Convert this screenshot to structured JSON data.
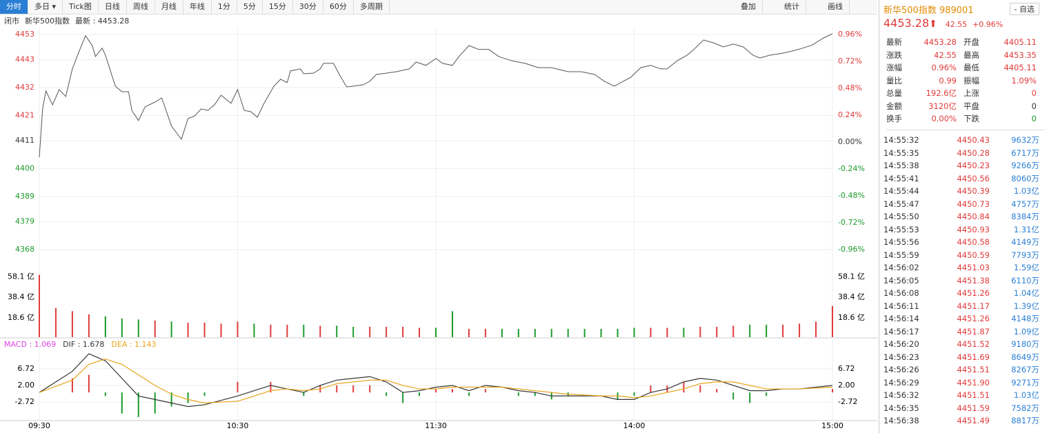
{
  "toolbar": {
    "tabs": [
      "分时",
      "多日 ▾",
      "Tick图",
      "日线",
      "周线",
      "月线",
      "年线",
      "1分",
      "5分",
      "15分",
      "30分",
      "60分",
      "多周期"
    ],
    "tools": [
      "叠加",
      "统计",
      "画线"
    ]
  },
  "info": {
    "status": "闭市",
    "name": "新华500指数",
    "latest": "最新 : 4453.28"
  },
  "chart_data": [
    {
      "type": "line",
      "color": "#555555",
      "grid": true,
      "x": [
        0,
        1,
        2,
        4,
        6,
        8,
        10,
        12,
        14,
        16,
        17,
        19,
        20,
        23,
        25,
        27,
        28,
        30,
        32,
        35,
        37,
        38,
        40,
        43,
        45,
        47,
        49,
        51,
        53,
        55,
        58,
        60,
        62,
        64,
        66,
        68,
        71,
        73,
        75,
        76,
        79,
        80,
        83,
        85,
        86,
        89,
        91,
        93,
        95,
        98,
        100,
        102,
        105,
        108,
        112,
        114,
        117,
        120,
        122,
        125,
        127,
        130,
        133,
        136,
        139,
        143,
        147,
        151,
        155,
        160,
        164,
        168,
        171,
        174,
        176,
        179,
        182,
        185,
        188,
        190,
        193,
        196,
        198,
        201,
        204,
        207,
        210,
        213,
        216,
        218,
        221,
        225,
        228,
        231,
        234,
        237,
        240
      ],
      "values": [
        4404.5,
        4423.6,
        4430.7,
        4425.2,
        4431.2,
        4428.5,
        4439.4,
        4446.2,
        4452.5,
        4448.6,
        4444.3,
        4447.6,
        4444.8,
        4432.6,
        4430.4,
        4430.4,
        4423.0,
        4419.0,
        4424.4,
        4426.3,
        4427.9,
        4424.4,
        4416.8,
        4411.6,
        4419.8,
        4420.8,
        4423.6,
        4423.0,
        4425.2,
        4429.0,
        4425.8,
        4431.2,
        4423.0,
        4422.5,
        4420.3,
        4425.8,
        4432.6,
        4435.3,
        4434.0,
        4438.6,
        4439.4,
        4437.5,
        4437.7,
        4439.4,
        4441.6,
        4441.6,
        4436.7,
        4432.3,
        4432.6,
        4433.1,
        4434.5,
        4437.2,
        4437.7,
        4438.3,
        4439.4,
        4442.1,
        4440.8,
        4443.5,
        4441.6,
        4440.8,
        4444.3,
        4448.6,
        4447.1,
        4447.1,
        4444.3,
        4442.6,
        4441.6,
        4439.9,
        4439.9,
        4438.3,
        4438.3,
        4437.2,
        4434.5,
        4432.6,
        4434.0,
        4436.1,
        4439.9,
        4440.8,
        4439.4,
        4439.4,
        4442.6,
        4444.8,
        4447.0,
        4450.8,
        4449.7,
        4448.1,
        4449.2,
        4448.1,
        4444.8,
        4443.7,
        4444.8,
        4445.6,
        4446.5,
        4447.6,
        4448.9,
        4451.4,
        4453.3
      ],
      "xlim": [
        0,
        240
      ],
      "xticks": [
        {
          "value": 0,
          "label": "09:30"
        },
        {
          "value": 60,
          "label": "10:30"
        },
        {
          "value": 120,
          "label": "11:30"
        },
        {
          "value": 180,
          "label": "14:00"
        },
        {
          "value": 240,
          "label": "15:00"
        }
      ],
      "ylim": [
        4368,
        4453
      ],
      "yticks": [
        4453,
        4443,
        4432,
        4421,
        4411,
        4400,
        4389,
        4379,
        4368
      ],
      "y2lim": [
        -0.96,
        0.96
      ],
      "y2ticks": [
        {
          "value": 0.96,
          "label": "0.96%"
        },
        {
          "value": 0.72,
          "label": "0.72%"
        },
        {
          "value": 0.48,
          "label": "0.48%"
        },
        {
          "value": 0.24,
          "label": "0.24%"
        },
        {
          "value": 0,
          "label": "0.00%"
        },
        {
          "value": -0.24,
          "label": "-0.24%"
        },
        {
          "value": -0.48,
          "label": "-0.48%"
        },
        {
          "value": -0.72,
          "label": "-0.72%"
        },
        {
          "value": -0.96,
          "label": "-0.96%"
        }
      ],
      "up_color": "#e03a3a",
      "down_color": "#1a9a2a"
    },
    {
      "type": "bar",
      "x": [
        0,
        5,
        10,
        15,
        20,
        25,
        30,
        35,
        40,
        45,
        50,
        55,
        60,
        65,
        70,
        75,
        80,
        85,
        90,
        95,
        100,
        105,
        110,
        115,
        120,
        125,
        130,
        135,
        140,
        145,
        150,
        155,
        160,
        165,
        170,
        175,
        180,
        185,
        190,
        195,
        200,
        205,
        210,
        215,
        220,
        225,
        230,
        235,
        240
      ],
      "values": [
        60,
        28,
        25,
        22,
        20,
        18,
        17,
        16,
        15,
        14,
        14,
        13,
        15,
        13,
        12,
        12,
        12,
        11,
        11,
        10,
        10,
        10,
        10,
        9,
        9,
        25,
        8,
        8,
        8,
        8,
        8,
        8,
        8,
        8,
        8,
        8,
        9,
        9,
        9,
        9,
        10,
        10,
        11,
        12,
        12,
        12,
        13,
        15,
        30
      ],
      "colors": [
        "#e03a3a",
        "#e03a3a",
        "#e03a3a",
        "#e03a3a",
        "#1a9a2a",
        "#1a9a2a",
        "#1a9a2a",
        "#e03a3a",
        "#1a9a2a",
        "#e03a3a",
        "#e03a3a",
        "#e03a3a",
        "#e03a3a",
        "#1a9a2a",
        "#e03a3a",
        "#e03a3a",
        "#1a9a2a",
        "#e03a3a",
        "#1a9a2a",
        "#1a9a2a",
        "#e03a3a",
        "#e03a3a",
        "#e03a3a",
        "#e03a3a",
        "#1a9a2a",
        "#1a9a2a",
        "#e03a3a",
        "#e03a3a",
        "#1a9a2a",
        "#1a9a2a",
        "#1a9a2a",
        "#1a9a2a",
        "#1a9a2a",
        "#1a9a2a",
        "#1a9a2a",
        "#1a9a2a",
        "#1a9a2a",
        "#e03a3a",
        "#e03a3a",
        "#1a9a2a",
        "#e03a3a",
        "#e03a3a",
        "#e03a3a",
        "#1a9a2a",
        "#1a9a2a",
        "#e03a3a",
        "#e03a3a",
        "#e03a3a",
        "#e03a3a"
      ],
      "ylim": [
        0,
        77
      ],
      "yticks": [
        {
          "value": 58.1,
          "label": "58.1 亿"
        },
        {
          "value": 38.4,
          "label": "38.4 亿"
        },
        {
          "value": 18.6,
          "label": "18.6 亿"
        }
      ]
    },
    {
      "type": "macd",
      "x": [
        0,
        10,
        15,
        20,
        25,
        30,
        35,
        40,
        45,
        50,
        60,
        70,
        75,
        80,
        85,
        90,
        95,
        100,
        105,
        110,
        115,
        120,
        125,
        130,
        135,
        140,
        145,
        150,
        155,
        160,
        170,
        175,
        180,
        185,
        190,
        195,
        200,
        205,
        210,
        215,
        220,
        225,
        230,
        240
      ],
      "series": [
        {
          "name": "MACD : 1.069",
          "color": "#e040e0",
          "values": [
            0,
            4,
            5,
            -1,
            -6,
            -7,
            -6,
            -4,
            -3,
            -1,
            3,
            3,
            0,
            -1,
            2,
            2,
            2,
            2,
            -1,
            -3,
            -1,
            1,
            1,
            -1,
            1,
            0,
            -1,
            -1,
            -2,
            -1,
            0,
            -2,
            -1,
            2,
            2,
            3,
            2,
            1,
            -2,
            -3,
            -1,
            0,
            0,
            1
          ]
        },
        {
          "name": "DIF : 1.678",
          "color": "#333333",
          "values": [
            0,
            6,
            11,
            9,
            4,
            -1,
            -2,
            -3,
            -4,
            -3.5,
            -1,
            2,
            1,
            0,
            2,
            3.5,
            4,
            4.5,
            3,
            0,
            0.5,
            1.5,
            2,
            0.5,
            2,
            1.5,
            0.5,
            0,
            -1,
            -1,
            -1,
            -2,
            -2,
            0,
            1,
            3,
            4,
            3.5,
            2,
            0.5,
            0.5,
            1,
            1,
            2
          ]
        },
        {
          "name": "DEA : 1.143",
          "color": "#e8a317",
          "values": [
            0,
            3.5,
            8,
            9.5,
            8,
            5,
            2,
            -0.5,
            -2,
            -3,
            -2.5,
            0.5,
            1,
            0.5,
            1,
            2.5,
            3,
            3.5,
            3.5,
            2,
            1,
            1,
            1.5,
            1.5,
            1.5,
            1.5,
            1,
            0.5,
            0,
            -0.5,
            -1,
            -1,
            -1.5,
            -1,
            0,
            1,
            2.5,
            3,
            3,
            2,
            1,
            1,
            1,
            1.5
          ]
        }
      ],
      "ylim": [
        -8,
        11.6
      ],
      "yticks": [
        6.72,
        {
          "value": 2,
          "label": "2.00"
        },
        -2.72
      ],
      "up_color": "#e03a3a",
      "down_color": "#1a9a2a"
    }
  ],
  "side": {
    "name": "新华500指数",
    "code": "989001",
    "button": "- 自选",
    "price": "4453.28",
    "change": "42.55",
    "pct": "+0.96%",
    "stats": [
      [
        "最新",
        "4453.28",
        "开盘",
        "4405.11"
      ],
      [
        "涨跌",
        "42.55",
        "最高",
        "4453.35"
      ],
      [
        "涨幅",
        "0.96%",
        "最低",
        "4405.11"
      ],
      [
        "量比",
        "0.99",
        "振幅",
        "1.09%"
      ],
      [
        "总量",
        "192.6亿",
        "上涨",
        "0"
      ],
      [
        "金额",
        "3120亿",
        "平盘",
        "0"
      ],
      [
        "换手",
        "0.00%",
        "下跌",
        "0"
      ]
    ],
    "trades": [
      [
        "14:55:32",
        "4450.43",
        "9632万"
      ],
      [
        "14:55:35",
        "4450.28",
        "6717万"
      ],
      [
        "14:55:38",
        "4450.23",
        "9266万"
      ],
      [
        "14:55:41",
        "4450.56",
        "8060万"
      ],
      [
        "14:55:44",
        "4450.39",
        "1.03亿"
      ],
      [
        "14:55:47",
        "4450.73",
        "4757万"
      ],
      [
        "14:55:50",
        "4450.84",
        "8384万"
      ],
      [
        "14:55:53",
        "4450.93",
        "1.31亿"
      ],
      [
        "14:55:56",
        "4450.58",
        "4149万"
      ],
      [
        "14:55:59",
        "4450.59",
        "7793万"
      ],
      [
        "14:56:02",
        "4451.03",
        "1.59亿"
      ],
      [
        "14:56:05",
        "4451.38",
        "6110万"
      ],
      [
        "14:56:08",
        "4451.26",
        "1.04亿"
      ],
      [
        "14:56:11",
        "4451.17",
        "1.39亿"
      ],
      [
        "14:56:14",
        "4451.26",
        "4148万"
      ],
      [
        "14:56:17",
        "4451.87",
        "1.09亿"
      ],
      [
        "14:56:20",
        "4451.52",
        "9180万"
      ],
      [
        "14:56:23",
        "4451.69",
        "8649万"
      ],
      [
        "14:56:26",
        "4451.51",
        "8267万"
      ],
      [
        "14:56:29",
        "4451.90",
        "9271万"
      ],
      [
        "14:56:32",
        "4451.51",
        "1.03亿"
      ],
      [
        "14:56:35",
        "4451.59",
        "7582万"
      ],
      [
        "14:56:38",
        "4451.49",
        "8817万"
      ]
    ]
  }
}
